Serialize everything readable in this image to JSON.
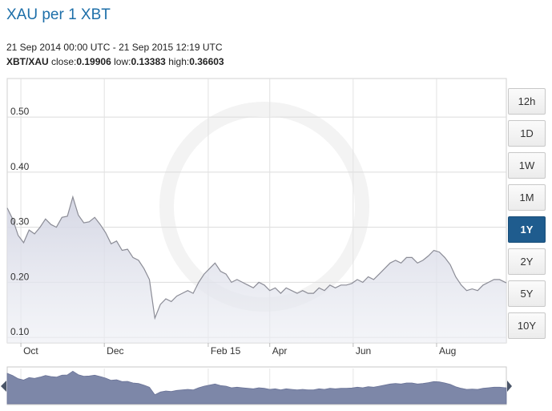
{
  "header": {
    "title": "XAU per 1 XBT",
    "date_range": "21 Sep 2014 00:00 UTC - 21 Sep 2015 12:19 UTC",
    "pair_label": "XBT/XAU",
    "close_label": "close:",
    "close_value": "0.19906",
    "low_label": "low:",
    "low_value": "0.13383",
    "high_label": "high:",
    "high_value": "0.36603"
  },
  "range_buttons": [
    {
      "label": "12h",
      "active": false
    },
    {
      "label": "1D",
      "active": false
    },
    {
      "label": "1W",
      "active": false
    },
    {
      "label": "1M",
      "active": false
    },
    {
      "label": "1Y",
      "active": true
    },
    {
      "label": "2Y",
      "active": false
    },
    {
      "label": "5Y",
      "active": false
    },
    {
      "label": "10Y",
      "active": false
    }
  ],
  "colors": {
    "line": "#8b8c96",
    "area": "#d9dbe8",
    "navigator": "#7d87a8",
    "active_button": "#1f5c8e",
    "title": "#1d6fa9"
  },
  "chart_data": {
    "type": "area",
    "series": [
      {
        "x": [
          "2014-09-21",
          "2014-09-25",
          "2014-09-29",
          "2014-10-03",
          "2014-10-07",
          "2014-10-11",
          "2014-10-15",
          "2014-10-19",
          "2014-10-23",
          "2014-10-27",
          "2014-10-31",
          "2014-11-04",
          "2014-11-08",
          "2014-11-12",
          "2014-11-16",
          "2014-11-20",
          "2014-11-24",
          "2014-11-28",
          "2014-12-02",
          "2014-12-06",
          "2014-12-10",
          "2014-12-14",
          "2014-12-18",
          "2014-12-22",
          "2014-12-26",
          "2014-12-30",
          "2015-01-03",
          "2015-01-07",
          "2015-01-11",
          "2015-01-15",
          "2015-01-19",
          "2015-01-23",
          "2015-01-27",
          "2015-01-31",
          "2015-02-04",
          "2015-02-08",
          "2015-02-12",
          "2015-02-16",
          "2015-02-20",
          "2015-02-24",
          "2015-02-28",
          "2015-03-04",
          "2015-03-08",
          "2015-03-12",
          "2015-03-16",
          "2015-03-20",
          "2015-03-24",
          "2015-03-28",
          "2015-04-01",
          "2015-04-05",
          "2015-04-09",
          "2015-04-13",
          "2015-04-17",
          "2015-04-21",
          "2015-04-25",
          "2015-04-29",
          "2015-05-03",
          "2015-05-07",
          "2015-05-11",
          "2015-05-15",
          "2015-05-19",
          "2015-05-23",
          "2015-05-27",
          "2015-05-31",
          "2015-06-04",
          "2015-06-08",
          "2015-06-12",
          "2015-06-16",
          "2015-06-20",
          "2015-06-24",
          "2015-06-28",
          "2015-07-02",
          "2015-07-06",
          "2015-07-10",
          "2015-07-14",
          "2015-07-18",
          "2015-07-22",
          "2015-07-26",
          "2015-07-30",
          "2015-08-03",
          "2015-08-07",
          "2015-08-11",
          "2015-08-15",
          "2015-08-19",
          "2015-08-23",
          "2015-08-27",
          "2015-08-31",
          "2015-09-04",
          "2015-09-08",
          "2015-09-12",
          "2015-09-16",
          "2015-09-21"
        ],
        "values": [
          0.335,
          0.315,
          0.285,
          0.272,
          0.295,
          0.288,
          0.3,
          0.315,
          0.305,
          0.3,
          0.318,
          0.32,
          0.355,
          0.322,
          0.308,
          0.31,
          0.318,
          0.305,
          0.29,
          0.27,
          0.275,
          0.258,
          0.26,
          0.245,
          0.24,
          0.225,
          0.205,
          0.135,
          0.16,
          0.17,
          0.165,
          0.175,
          0.18,
          0.185,
          0.18,
          0.2,
          0.215,
          0.225,
          0.235,
          0.22,
          0.215,
          0.2,
          0.205,
          0.2,
          0.195,
          0.19,
          0.2,
          0.195,
          0.185,
          0.19,
          0.18,
          0.19,
          0.185,
          0.18,
          0.185,
          0.18,
          0.18,
          0.19,
          0.185,
          0.195,
          0.19,
          0.195,
          0.195,
          0.198,
          0.205,
          0.2,
          0.21,
          0.205,
          0.215,
          0.225,
          0.235,
          0.24,
          0.235,
          0.245,
          0.245,
          0.235,
          0.24,
          0.248,
          0.258,
          0.255,
          0.245,
          0.232,
          0.21,
          0.195,
          0.185,
          0.188,
          0.185,
          0.195,
          0.2,
          0.205,
          0.205,
          0.199
        ]
      }
    ],
    "xlim": [
      "2014-09-21",
      "2015-09-21"
    ],
    "ylim": [
      0.09,
      0.57
    ],
    "y_ticks": [
      0.1,
      0.2,
      0.3,
      0.4,
      0.5
    ],
    "y_tick_labels": [
      "0.10",
      "0.20",
      "0.30",
      "0.40",
      "0.50"
    ],
    "x_ticks": [
      "2014-10-01",
      "2014-12-01",
      "2015-02-15",
      "2015-04-01",
      "2015-06-01",
      "2015-08-01"
    ],
    "x_tick_labels": [
      "Oct",
      "Dec",
      "Feb 15",
      "Apr",
      "Jun",
      "Aug"
    ],
    "grid": true,
    "navigator": true
  }
}
